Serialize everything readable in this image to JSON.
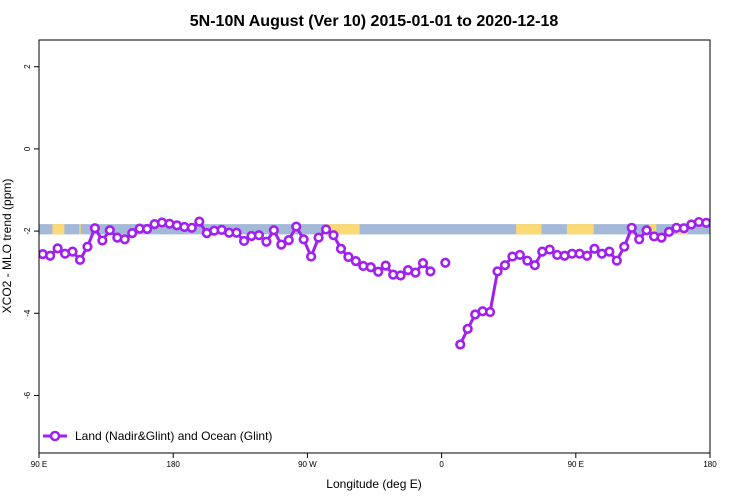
{
  "chart_data": {
    "type": "line",
    "title": "5N-10N August (Ver 10)   2015-01-01 to 2020-12-18",
    "xlabel": "Longitude (deg E)",
    "ylabel": "XCO2 - MLO trend (ppm)",
    "x_tick_labels": [
      "90 E",
      "180",
      "90 W",
      "0",
      "90 E",
      "180"
    ],
    "x_tick_values": [
      90,
      180,
      270,
      360,
      450,
      540
    ],
    "y_tick_labels": [
      "2",
      "0",
      "-2",
      "-4",
      "-6"
    ],
    "y_tick_values": [
      2,
      0,
      -2,
      -4,
      -6
    ],
    "xlim": [
      90,
      540
    ],
    "ylim": [
      -7.4,
      2.65
    ],
    "grid": false,
    "legend": {
      "position": "bottom-left",
      "label": "Land (Nadir&Glint) and Ocean (Glint)"
    },
    "colors": {
      "series": "#a020f0",
      "ocean_band": "#a4b9d8",
      "land_band": "#fbd974"
    },
    "land_band": {
      "y_top": -1.83,
      "y_bottom": -2.08,
      "land_ranges": [
        [
          99,
          107
        ],
        [
          117,
          118
        ],
        [
          282,
          305
        ],
        [
          410,
          427
        ],
        [
          444,
          462
        ],
        [
          499,
          504
        ],
        [
          518,
          525
        ]
      ]
    },
    "series": [
      {
        "name": "Land (Nadir&Glint) and Ocean (Glint)",
        "segments": [
          [
            [
              92.5,
              -2.56
            ],
            [
              97.5,
              -2.6
            ],
            [
              102.5,
              -2.42
            ],
            [
              107.5,
              -2.55
            ],
            [
              112.5,
              -2.5
            ],
            [
              117.5,
              -2.7
            ],
            [
              122.5,
              -2.38
            ],
            [
              127.5,
              -1.93
            ],
            [
              132.5,
              -2.23
            ],
            [
              137.5,
              -1.98
            ],
            [
              142.5,
              -2.16
            ],
            [
              147.5,
              -2.2
            ],
            [
              152.5,
              -2.05
            ],
            [
              157.5,
              -1.94
            ],
            [
              162.5,
              -1.95
            ],
            [
              167.5,
              -1.83
            ],
            [
              172.5,
              -1.79
            ],
            [
              177.5,
              -1.82
            ],
            [
              182.5,
              -1.86
            ],
            [
              187.5,
              -1.9
            ],
            [
              192.5,
              -1.92
            ],
            [
              197.5,
              -1.77
            ],
            [
              202.5,
              -2.05
            ],
            [
              207.5,
              -1.99
            ],
            [
              212.5,
              -1.97
            ],
            [
              217.5,
              -2.04
            ],
            [
              222.5,
              -2.04
            ],
            [
              227.5,
              -2.24
            ],
            [
              232.5,
              -2.12
            ],
            [
              237.5,
              -2.1
            ],
            [
              242.5,
              -2.26
            ],
            [
              247.5,
              -1.98
            ],
            [
              252.5,
              -2.33
            ],
            [
              257.5,
              -2.22
            ],
            [
              262.5,
              -1.89
            ],
            [
              267.5,
              -2.2
            ],
            [
              272.5,
              -2.62
            ],
            [
              277.5,
              -2.16
            ],
            [
              282.5,
              -1.96
            ],
            [
              287.5,
              -2.1
            ],
            [
              292.5,
              -2.43
            ],
            [
              297.5,
              -2.63
            ],
            [
              302.5,
              -2.73
            ],
            [
              307.5,
              -2.85
            ],
            [
              312.5,
              -2.88
            ],
            [
              317.5,
              -2.99
            ],
            [
              322.5,
              -2.84
            ],
            [
              327.5,
              -3.06
            ],
            [
              332.5,
              -3.08
            ],
            [
              337.5,
              -2.95
            ],
            [
              342.5,
              -3.01
            ],
            [
              347.5,
              -2.78
            ],
            [
              352.5,
              -2.98
            ]
          ],
          [
            [
              362.5,
              -2.77
            ]
          ],
          [
            [
              372.5,
              -4.76
            ],
            [
              377.5,
              -4.38
            ],
            [
              382.5,
              -4.03
            ],
            [
              387.5,
              -3.95
            ],
            [
              392.5,
              -3.97
            ],
            [
              397.5,
              -2.98
            ],
            [
              402.5,
              -2.83
            ],
            [
              407.5,
              -2.62
            ],
            [
              412.5,
              -2.58
            ],
            [
              417.5,
              -2.72
            ],
            [
              422.5,
              -2.83
            ],
            [
              427.5,
              -2.5
            ],
            [
              432.5,
              -2.45
            ],
            [
              437.5,
              -2.58
            ],
            [
              442.5,
              -2.6
            ],
            [
              447.5,
              -2.55
            ],
            [
              452.5,
              -2.55
            ],
            [
              457.5,
              -2.6
            ],
            [
              462.5,
              -2.43
            ],
            [
              467.5,
              -2.55
            ],
            [
              472.5,
              -2.5
            ],
            [
              477.5,
              -2.72
            ],
            [
              482.5,
              -2.38
            ],
            [
              487.5,
              -1.92
            ],
            [
              492.5,
              -2.2
            ],
            [
              497.5,
              -1.98
            ],
            [
              502.5,
              -2.13
            ],
            [
              507.5,
              -2.16
            ],
            [
              512.5,
              -2.02
            ],
            [
              517.5,
              -1.92
            ],
            [
              522.5,
              -1.93
            ],
            [
              527.5,
              -1.84
            ],
            [
              532.5,
              -1.78
            ],
            [
              537.5,
              -1.8
            ]
          ]
        ]
      }
    ]
  }
}
